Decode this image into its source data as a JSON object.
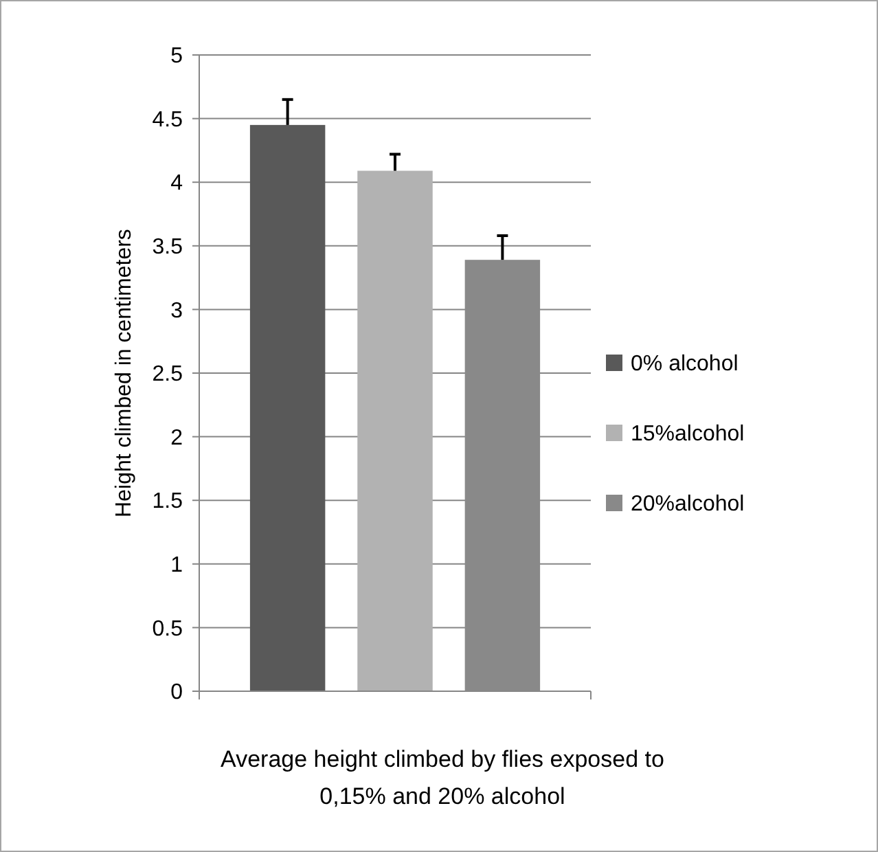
{
  "chart_data": {
    "type": "bar",
    "xlabel": "Average height climbed by flies exposed to 0,15% and 20% alcohol",
    "ylabel": "Height climbed in centimeters",
    "categories": [
      null
    ],
    "series": [
      {
        "name": "0% alcohol",
        "color": "#595959",
        "values": [
          4.45
        ],
        "errors": [
          [
            4.45,
            4.65
          ]
        ]
      },
      {
        "name": "15%alcohol",
        "color": "#b2b2b2",
        "values": [
          4.09
        ],
        "errors": [
          [
            4.09,
            4.22
          ]
        ]
      },
      {
        "name": "20%alcohol",
        "color": "#898989",
        "values": [
          3.39
        ],
        "errors": [
          [
            3.39,
            3.58
          ]
        ]
      }
    ],
    "ylim": [
      0,
      5
    ],
    "yticks": [
      0,
      0.5,
      1,
      1.5,
      2,
      2.5,
      3,
      3.5,
      4,
      4.5,
      5
    ],
    "grid": "y",
    "legend": "right"
  }
}
